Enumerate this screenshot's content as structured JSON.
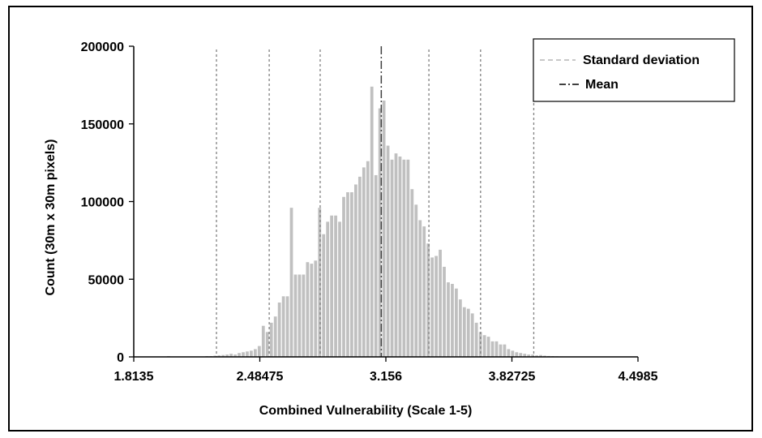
{
  "chart_data": {
    "type": "bar",
    "xlabel": "Combined Vulnerability (Scale 1-5)",
    "ylabel": "Count (30m x 30m pixels)",
    "xlim": [
      1.8135,
      4.4985
    ],
    "ylim": [
      0,
      200000
    ],
    "x_ticks": [
      "1.8135",
      "2.48475",
      "3.156",
      "3.82725",
      "4.4985"
    ],
    "y_ticks": [
      "0",
      "50000",
      "100000",
      "150000",
      "200000"
    ],
    "bar_color": "#c0c0c0",
    "line_color": "#808080",
    "mean": 3.1316,
    "std_lines": [
      2.2539,
      2.5348,
      2.8062,
      3.3852,
      3.6603,
      3.9436
    ],
    "legend": {
      "position": "top-right",
      "entries": [
        {
          "label": "Standard deviation",
          "style": "dashed",
          "color": "#c8c8c8"
        },
        {
          "label": "Mean",
          "style": "dashdot",
          "color": "#404040"
        }
      ]
    },
    "bins": [
      [
        1.9986,
        500
      ],
      [
        2.2036,
        500
      ],
      [
        2.225,
        500
      ],
      [
        2.2464,
        800
      ],
      [
        2.2678,
        1000
      ],
      [
        2.2892,
        1200
      ],
      [
        2.3106,
        1500
      ],
      [
        2.332,
        2000
      ],
      [
        2.3535,
        1500
      ],
      [
        2.3749,
        2500
      ],
      [
        2.3963,
        3000
      ],
      [
        2.4177,
        3500
      ],
      [
        2.4391,
        4000
      ],
      [
        2.4605,
        5000
      ],
      [
        2.4819,
        7000
      ],
      [
        2.5033,
        20000
      ],
      [
        2.5247,
        16000
      ],
      [
        2.5462,
        22000
      ],
      [
        2.5676,
        26000
      ],
      [
        2.589,
        35000
      ],
      [
        2.6104,
        39000
      ],
      [
        2.6318,
        39000
      ],
      [
        2.6532,
        96000
      ],
      [
        2.6746,
        53000
      ],
      [
        2.696,
        53000
      ],
      [
        2.7174,
        53000
      ],
      [
        2.7389,
        61000
      ],
      [
        2.7603,
        60000
      ],
      [
        2.7817,
        62000
      ],
      [
        2.8031,
        96000
      ],
      [
        2.8245,
        79000
      ],
      [
        2.8459,
        87000
      ],
      [
        2.8673,
        91000
      ],
      [
        2.8887,
        91000
      ],
      [
        2.9101,
        87000
      ],
      [
        2.9316,
        103000
      ],
      [
        2.953,
        106000
      ],
      [
        2.9744,
        106000
      ],
      [
        2.9958,
        111000
      ],
      [
        3.0172,
        116000
      ],
      [
        3.0386,
        122000
      ],
      [
        3.06,
        126000
      ],
      [
        3.0814,
        174000
      ],
      [
        3.1029,
        117000
      ],
      [
        3.1243,
        160000
      ],
      [
        3.1457,
        165000
      ],
      [
        3.1671,
        136000
      ],
      [
        3.1885,
        127000
      ],
      [
        3.2099,
        131000
      ],
      [
        3.2313,
        129000
      ],
      [
        3.2527,
        127000
      ],
      [
        3.2741,
        127000
      ],
      [
        3.2956,
        108000
      ],
      [
        3.317,
        98000
      ],
      [
        3.3384,
        88000
      ],
      [
        3.3598,
        84000
      ],
      [
        3.3812,
        73000
      ],
      [
        3.4026,
        64000
      ],
      [
        3.424,
        65000
      ],
      [
        3.4454,
        69000
      ],
      [
        3.4668,
        58000
      ],
      [
        3.4883,
        48000
      ],
      [
        3.5097,
        47000
      ],
      [
        3.5311,
        44000
      ],
      [
        3.5525,
        37000
      ],
      [
        3.5739,
        32000
      ],
      [
        3.5953,
        31000
      ],
      [
        3.6167,
        28000
      ],
      [
        3.6381,
        22000
      ],
      [
        3.6595,
        16000
      ],
      [
        3.681,
        14000
      ],
      [
        3.7024,
        13000
      ],
      [
        3.7238,
        10000
      ],
      [
        3.7452,
        10000
      ],
      [
        3.7666,
        8000
      ],
      [
        3.788,
        8000
      ],
      [
        3.8094,
        5000
      ],
      [
        3.8308,
        4000
      ],
      [
        3.8522,
        3000
      ],
      [
        3.8737,
        2500
      ],
      [
        3.8951,
        2000
      ],
      [
        3.9165,
        1500
      ],
      [
        3.9379,
        1500
      ],
      [
        3.9593,
        1000
      ],
      [
        3.9807,
        1200
      ],
      [
        4.0021,
        800
      ],
      [
        4.0235,
        600
      ],
      [
        4.0449,
        500
      ],
      [
        4.0664,
        400
      ],
      [
        4.0878,
        300
      ]
    ]
  }
}
